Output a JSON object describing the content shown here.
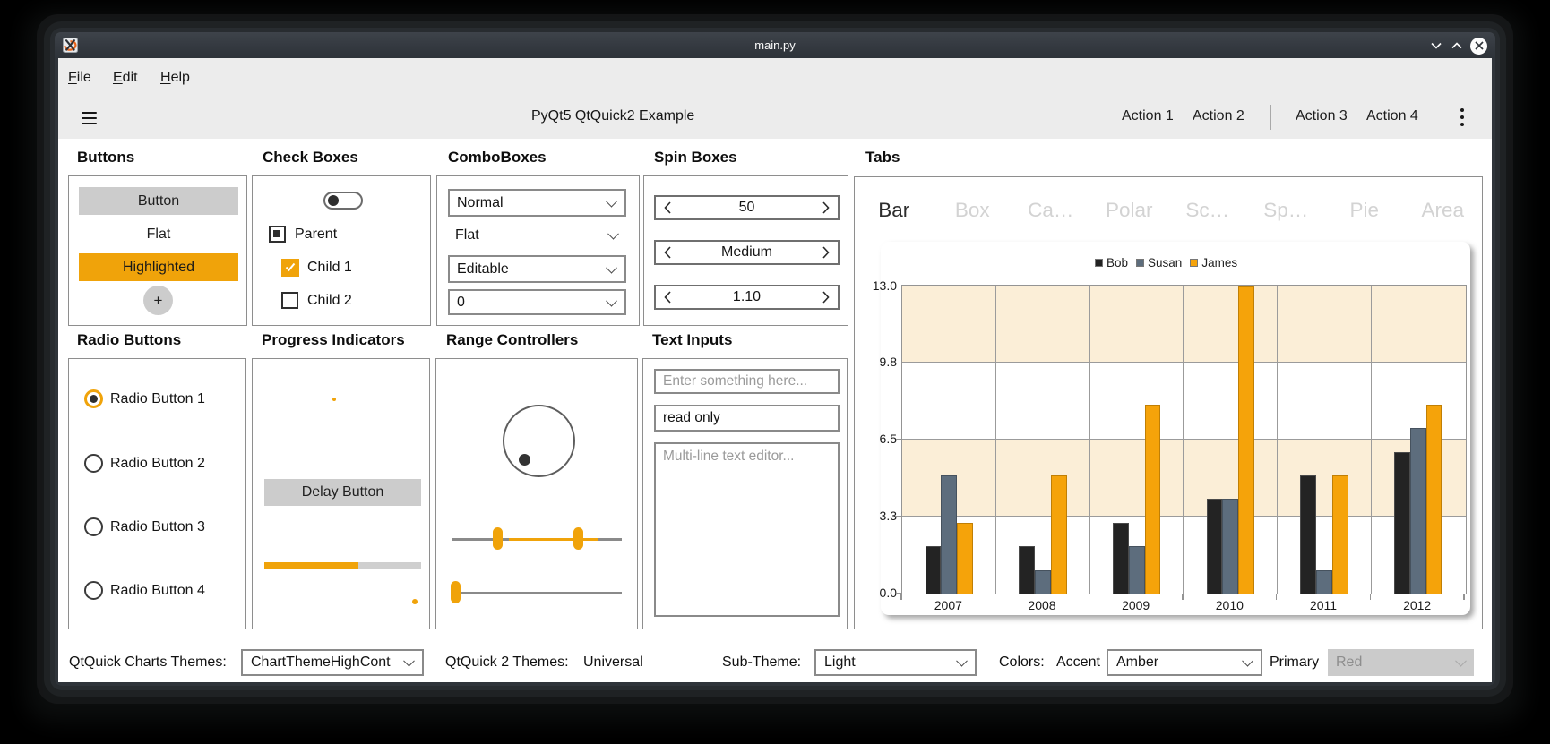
{
  "window": {
    "title": "main.py",
    "icon": "xorg-logo-icon",
    "controls": {
      "minimize": "chevron-down",
      "maximize": "chevron-up",
      "close": "circle-x"
    }
  },
  "menubar": {
    "items": [
      {
        "label": "File"
      },
      {
        "label": "Edit"
      },
      {
        "label": "Help"
      }
    ]
  },
  "toolbar": {
    "menu_icon": "hamburger",
    "title": "PyQt5 QtQuick2 Example",
    "actions": [
      "Action 1",
      "Action 2",
      "Action 3",
      "Action 4"
    ],
    "overflow_icon": "kebab-dots"
  },
  "panels": {
    "buttons": {
      "title": "Buttons",
      "normal": "Button",
      "flat": "Flat",
      "highlighted": "Highlighted",
      "round": "+"
    },
    "checkboxes": {
      "title": "Check Boxes",
      "switch_state": "off",
      "items": [
        {
          "label": "Parent",
          "state": "partial"
        },
        {
          "label": "Child 1",
          "state": "checked"
        },
        {
          "label": "Child 2",
          "state": "unchecked"
        }
      ]
    },
    "comboboxes": {
      "title": "ComboBoxes",
      "normal": "Normal",
      "flat": "Flat",
      "editable": "Editable",
      "zero": "0"
    },
    "spinboxes": {
      "title": "Spin Boxes",
      "values": [
        "50",
        "Medium",
        "1.10"
      ]
    },
    "radios": {
      "title": "Radio Buttons",
      "selected_index": 0,
      "items": [
        "Radio Button 1",
        "Radio Button 2",
        "Radio Button 3",
        "Radio Button 4"
      ]
    },
    "progress": {
      "title": "Progress Indicators",
      "delay_button": "Delay Button",
      "progress_percent": 60
    },
    "range": {
      "title": "Range Controllers",
      "controls": [
        "dial",
        "range-slider",
        "slider"
      ]
    },
    "textinputs": {
      "title": "Text Inputs",
      "field_placeholder": "Enter something here...",
      "readonly_value": "read only",
      "textarea_placeholder": "Multi-line text editor..."
    },
    "tabs": {
      "title": "Tabs",
      "active_index": 0,
      "items": [
        "Bar",
        "Box",
        "Ca…",
        "Polar",
        "Sc…",
        "Sp…",
        "Pie",
        "Area"
      ]
    }
  },
  "chart_data": {
    "type": "bar",
    "categories": [
      "2007",
      "2008",
      "2009",
      "2010",
      "2011",
      "2012"
    ],
    "series": [
      {
        "name": "Bob",
        "color": "#232323",
        "border": "#4a4a4a",
        "values": [
          2,
          2,
          3,
          4,
          5,
          6
        ]
      },
      {
        "name": "Susan",
        "color": "#5d6d7d",
        "border": "#46525e",
        "values": [
          5,
          1,
          2,
          4,
          1,
          7
        ]
      },
      {
        "name": "James",
        "color": "#f5a30a",
        "border": "#c07f05",
        "values": [
          3,
          5,
          8,
          13,
          5,
          8
        ]
      }
    ],
    "title": "",
    "xlabel": "",
    "ylabel": "",
    "ylim": [
      0,
      13
    ],
    "yticks": [
      "0.0",
      "3.3",
      "6.5",
      "9.8",
      "13.0"
    ],
    "legend_position": "top",
    "grid": true,
    "band_color": "#fbeed7"
  },
  "statusbar": {
    "charts_themes_label": "QtQuick Charts Themes:",
    "charts_theme_value": "ChartThemeHighCont",
    "qt2_themes_label": "QtQuick 2 Themes:",
    "qt2_theme_value": "Universal",
    "subtheme_label": "Sub-Theme:",
    "subtheme_value": "Light",
    "colors_label": "Colors:",
    "accent_label": "Accent",
    "accent_value": "Amber",
    "primary_label": "Primary",
    "primary_value": "Red"
  },
  "colors": {
    "accent": "#f0a30a",
    "titlebar": "#343940",
    "toolbar_bg": "#ececec",
    "band": "#fbeed7"
  }
}
